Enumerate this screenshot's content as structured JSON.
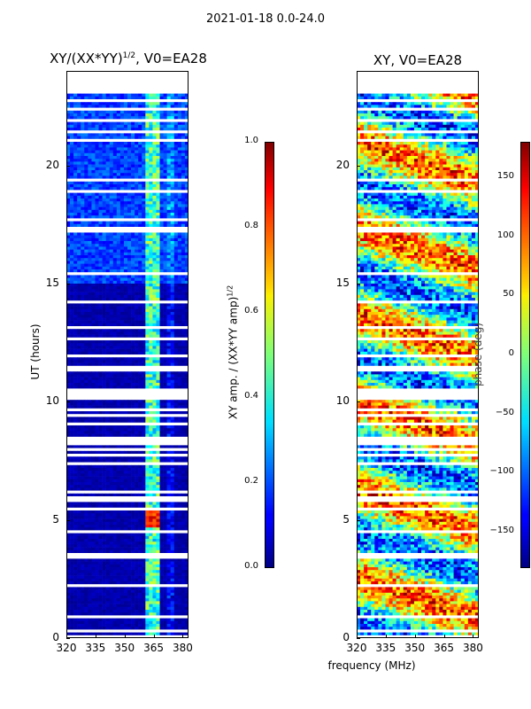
{
  "suptitle": "2021-01-18 0.0-24.0",
  "chart_data": [
    {
      "type": "heatmap",
      "title_main": "XY/(XX*YY)",
      "title_sup": "1/2",
      "title_tail": ", V0=EA28",
      "xlabel": "",
      "ylabel": "UT (hours)",
      "xlim": [
        320,
        383
      ],
      "ylim": [
        0,
        24
      ],
      "xticks": [
        320,
        335,
        350,
        365,
        380
      ],
      "yticks": [
        0,
        5,
        10,
        15,
        20
      ],
      "colorbar": {
        "label_main": "XY amp. / (XX*YY amp)",
        "label_sup": "1/2",
        "range": [
          0.0,
          1.0
        ],
        "ticks": [
          "0.0",
          "0.2",
          "0.4",
          "0.6",
          "0.8",
          "1.0"
        ],
        "colormap": "jet"
      },
      "description": "amplitude ratio mostly low (dark blue) with higher values near 361-368 MHz"
    },
    {
      "type": "heatmap",
      "title": "XY, V0=EA28",
      "xlabel": "frequency (MHz)",
      "ylabel": "",
      "xlim": [
        320,
        383
      ],
      "ylim": [
        0,
        24
      ],
      "xticks": [
        320,
        335,
        350,
        365,
        380
      ],
      "yticks": [
        0,
        5,
        10,
        15,
        20
      ],
      "colorbar": {
        "label": "phase (deg)",
        "range": [
          -180,
          180
        ],
        "ticks": [
          "−150",
          "−100",
          "−50",
          "0",
          "50",
          "100",
          "150"
        ],
        "colormap": "jet"
      },
      "description": "phase values span full range with horizontal banding"
    }
  ]
}
